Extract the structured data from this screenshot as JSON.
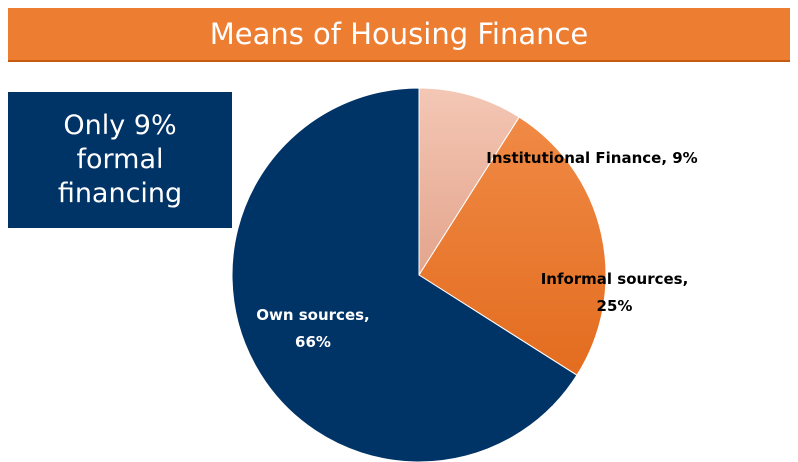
{
  "title": "Means of Housing Finance",
  "note": "Only 9% formal financing",
  "chart_data": {
    "type": "pie",
    "values": [
      9,
      25,
      66
    ],
    "value_labels": [
      "Institutional Finance, 9%",
      "Informal sources, 25%",
      "Own sources, 66%"
    ],
    "colors": [
      "#f2c0ab",
      "#ed7d31",
      "#003366"
    ]
  }
}
